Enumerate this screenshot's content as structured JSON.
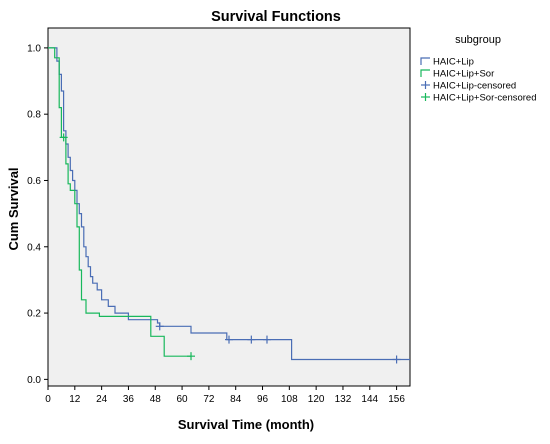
{
  "chart_data": {
    "type": "line",
    "step": true,
    "title": "Survival Functions",
    "xlabel": "Survival Time (month)",
    "ylabel": "Cum Survival",
    "xlim": [
      0,
      162
    ],
    "ylim": [
      -0.02,
      1.06
    ],
    "x_ticks": [
      0,
      12,
      24,
      36,
      48,
      60,
      72,
      84,
      96,
      108,
      120,
      132,
      144,
      156
    ],
    "y_ticks": [
      0.0,
      0.2,
      0.4,
      0.6,
      0.8,
      1.0
    ],
    "x_tick_labels": [
      "0",
      "12",
      "24",
      "36",
      "48",
      "60",
      "72",
      "84",
      "96",
      "108",
      "120",
      "132",
      "144",
      "156"
    ],
    "y_tick_labels": [
      "0.0",
      "0.2",
      "0.4",
      "0.6",
      "0.8",
      "1.0"
    ],
    "grid": false,
    "plot_background": "#f0f0f0",
    "legend": {
      "title": "subgroup",
      "placement": "top-right",
      "entries": [
        {
          "label": "HAIC+Lip",
          "kind": "line",
          "color": "#4a6db5"
        },
        {
          "label": "HAIC+Lip+Sor",
          "kind": "line",
          "color": "#18b85c"
        },
        {
          "label": "HAIC+Lip-censored",
          "kind": "censor",
          "color": "#4a6db5"
        },
        {
          "label": "HAIC+Lip+Sor-censored",
          "kind": "censor",
          "color": "#18b85c"
        }
      ]
    },
    "series": [
      {
        "name": "HAIC+Lip",
        "color": "#4a6db5",
        "points": [
          [
            0,
            1.0
          ],
          [
            4,
            1.0
          ],
          [
            4,
            0.96
          ],
          [
            5,
            0.96
          ],
          [
            5,
            0.92
          ],
          [
            6,
            0.92
          ],
          [
            6,
            0.87
          ],
          [
            7,
            0.87
          ],
          [
            7,
            0.75
          ],
          [
            8,
            0.75
          ],
          [
            8,
            0.71
          ],
          [
            9,
            0.71
          ],
          [
            9,
            0.67
          ],
          [
            10,
            0.67
          ],
          [
            10,
            0.63
          ],
          [
            11,
            0.63
          ],
          [
            11,
            0.6
          ],
          [
            12,
            0.6
          ],
          [
            12,
            0.57
          ],
          [
            13,
            0.57
          ],
          [
            13,
            0.53
          ],
          [
            14,
            0.53
          ],
          [
            14,
            0.5
          ],
          [
            15,
            0.5
          ],
          [
            15,
            0.46
          ],
          [
            16,
            0.46
          ],
          [
            16,
            0.4
          ],
          [
            17,
            0.4
          ],
          [
            17,
            0.37
          ],
          [
            18,
            0.37
          ],
          [
            18,
            0.34
          ],
          [
            19,
            0.34
          ],
          [
            19,
            0.31
          ],
          [
            20,
            0.31
          ],
          [
            20,
            0.29
          ],
          [
            22,
            0.29
          ],
          [
            22,
            0.27
          ],
          [
            24,
            0.27
          ],
          [
            24,
            0.24
          ],
          [
            27,
            0.24
          ],
          [
            27,
            0.22
          ],
          [
            30,
            0.22
          ],
          [
            30,
            0.2
          ],
          [
            36,
            0.2
          ],
          [
            36,
            0.18
          ],
          [
            49,
            0.18
          ],
          [
            49,
            0.17
          ],
          [
            50,
            0.17
          ],
          [
            50,
            0.16
          ],
          [
            64,
            0.16
          ],
          [
            64,
            0.14
          ],
          [
            80,
            0.14
          ],
          [
            80,
            0.12
          ],
          [
            109,
            0.12
          ],
          [
            109,
            0.06
          ],
          [
            162,
            0.06
          ]
        ],
        "censored": [
          [
            50,
            0.16
          ],
          [
            81,
            0.12
          ],
          [
            91,
            0.12
          ],
          [
            98,
            0.12
          ],
          [
            156,
            0.06
          ]
        ]
      },
      {
        "name": "HAIC+Lip+Sor",
        "color": "#18b85c",
        "points": [
          [
            0,
            1.0
          ],
          [
            3,
            1.0
          ],
          [
            3,
            0.97
          ],
          [
            5,
            0.97
          ],
          [
            5,
            0.82
          ],
          [
            6,
            0.82
          ],
          [
            6,
            0.73
          ],
          [
            8,
            0.73
          ],
          [
            8,
            0.65
          ],
          [
            9,
            0.65
          ],
          [
            9,
            0.59
          ],
          [
            10,
            0.59
          ],
          [
            10,
            0.57
          ],
          [
            12,
            0.57
          ],
          [
            12,
            0.53
          ],
          [
            13,
            0.53
          ],
          [
            13,
            0.46
          ],
          [
            14,
            0.46
          ],
          [
            14,
            0.33
          ],
          [
            15,
            0.33
          ],
          [
            15,
            0.24
          ],
          [
            17,
            0.24
          ],
          [
            17,
            0.2
          ],
          [
            23,
            0.2
          ],
          [
            23,
            0.19
          ],
          [
            46,
            0.19
          ],
          [
            46,
            0.13
          ],
          [
            52,
            0.13
          ],
          [
            52,
            0.07
          ],
          [
            64,
            0.07
          ]
        ],
        "censored": [
          [
            7,
            0.73
          ],
          [
            64,
            0.07
          ]
        ]
      }
    ]
  }
}
